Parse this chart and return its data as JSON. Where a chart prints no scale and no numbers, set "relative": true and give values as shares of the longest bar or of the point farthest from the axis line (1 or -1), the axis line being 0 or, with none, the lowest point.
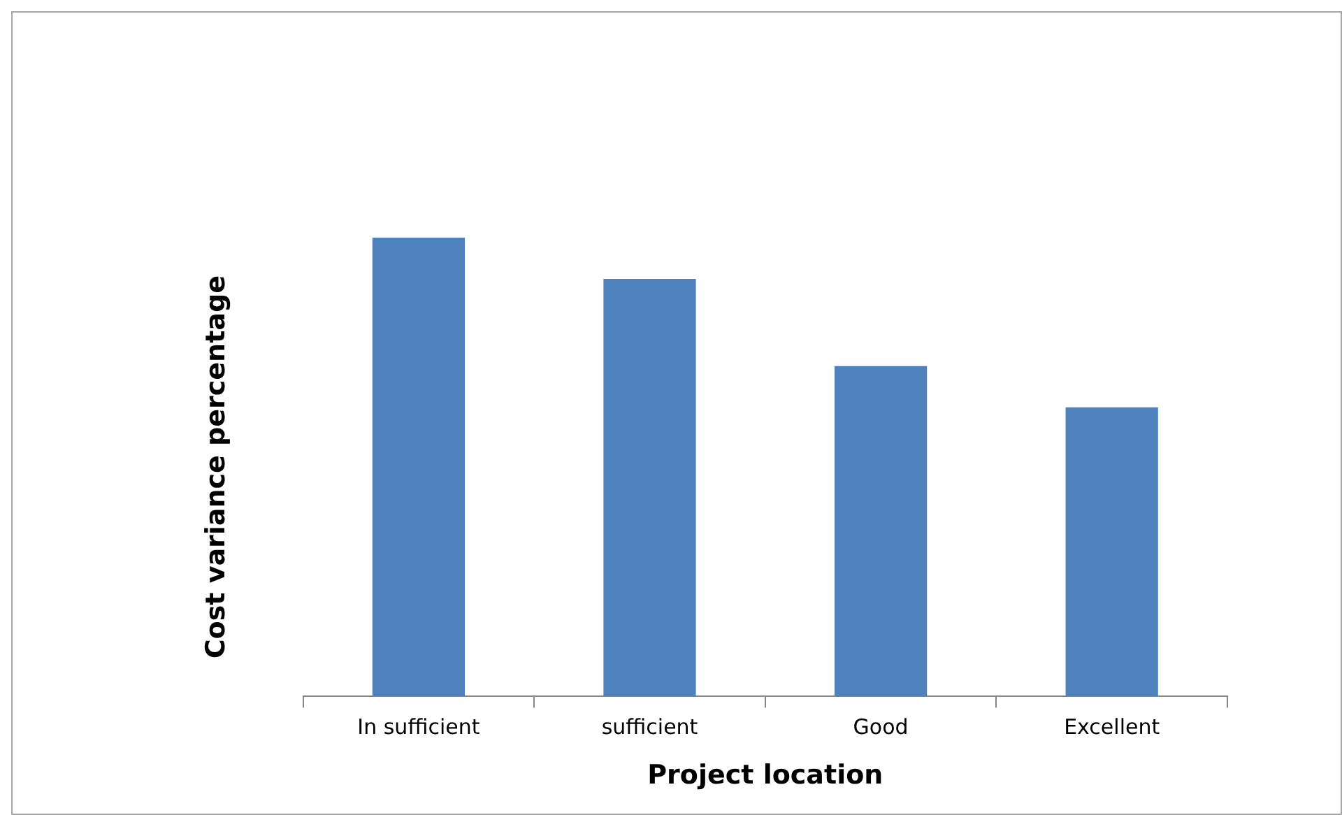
{
  "chart_data": {
    "type": "bar",
    "xlabel": "Project location",
    "ylabel": "Cost variance percentage",
    "categories": [
      "In sufficient",
      "sufficient",
      "Good",
      "Excellent"
    ],
    "values": [
      1,
      0.91,
      0.72,
      0.63
    ],
    "color": "#4f81bd",
    "relative": true,
    "grid": false,
    "legend": false
  }
}
